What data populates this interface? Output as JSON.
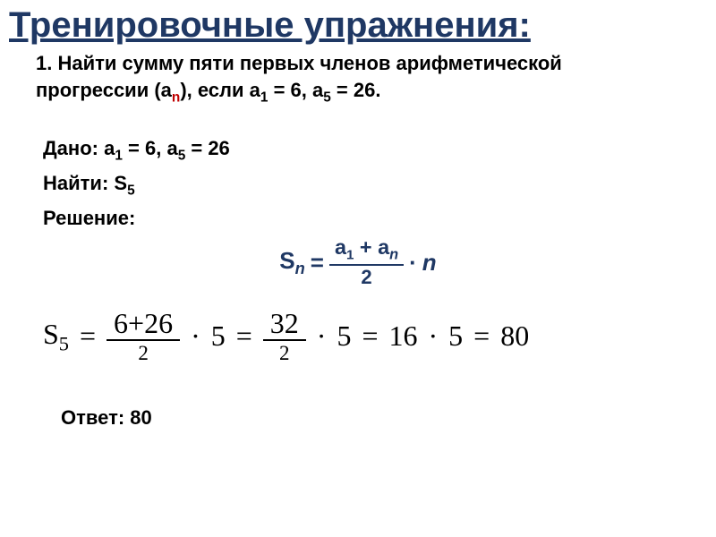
{
  "colors": {
    "title_color": "#1f3864",
    "formula_color": "#1f3864",
    "text_color": "#000000",
    "accent_color": "#c00000",
    "background": "#ffffff"
  },
  "title": "Тренировочные упражнения:",
  "problem": {
    "line1_prefix": "1. Найти сумму пяти первых членов арифметической",
    "line2_prefix": "прогрессии (a",
    "line2_sub": "n",
    "line2_mid": "), если a",
    "line2_sub1": "1",
    "line2_mid2": " = 6,  a",
    "line2_sub5": "5",
    "line2_end": " = 26."
  },
  "given": {
    "label": "Дано: ",
    "a1_label": "a",
    "a1_sub": "1",
    "a1_eq": " = 6,  ",
    "a5_label": "a",
    "a5_sub": "5",
    "a5_eq": " = 26",
    "find_label": "Найти: ",
    "find_sym": "S",
    "find_sub": "5",
    "sol_label": "Решение:"
  },
  "formula": {
    "S": "S",
    "n": "n",
    "eq": " = ",
    "num_a1": "a",
    "num_sub1": "1",
    "plus": " + ",
    "num_an": "a",
    "num_subn": "n",
    "den": "2",
    "dot": "·",
    "tail_n": "n"
  },
  "calc": {
    "S": "S",
    "sub5": "5",
    "eq": "=",
    "frac1_num": "6+26",
    "frac1_den": "2",
    "dot": "·",
    "five": "5",
    "frac2_num": "32",
    "frac2_den": "2",
    "sixteen": "16",
    "eighty": "80"
  },
  "answer": {
    "label": "Ответ: ",
    "value": "80"
  }
}
